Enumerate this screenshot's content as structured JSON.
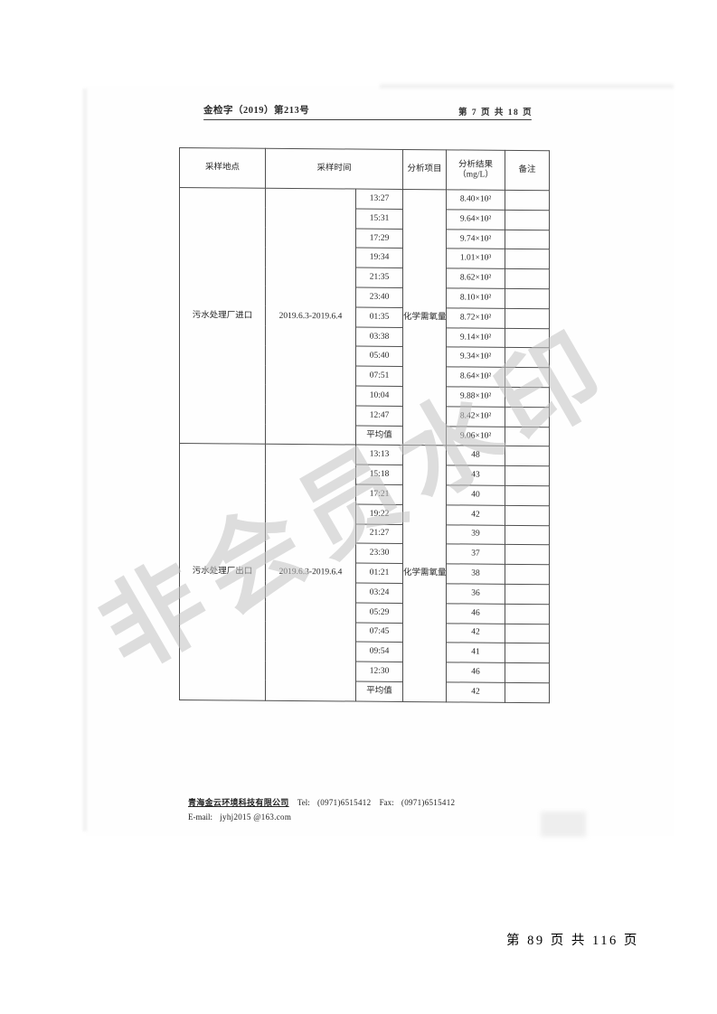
{
  "scan": {
    "doc_number": "金检字（2019）第213号",
    "page_label": "第 7 页 共 18 页",
    "watermark": "非会员水印",
    "table": {
      "headers": {
        "location": "采样地点",
        "time": "采样时间",
        "item": "分析项目",
        "result_line1": "分析结果",
        "result_line2": "（mg/L）",
        "remark": "备注"
      },
      "sections": [
        {
          "location": "污水处理厂进口",
          "date": "2019.6.3-2019.6.4",
          "item": "化学需氧量",
          "rows": [
            {
              "time": "13:27",
              "result": "8.40×10²",
              "remark": ""
            },
            {
              "time": "15:31",
              "result": "9.64×10²",
              "remark": ""
            },
            {
              "time": "17:29",
              "result": "9.74×10²",
              "remark": ""
            },
            {
              "time": "19:34",
              "result": "1.01×10³",
              "remark": ""
            },
            {
              "time": "21:35",
              "result": "8.62×10²",
              "remark": ""
            },
            {
              "time": "23:40",
              "result": "8.10×10²",
              "remark": ""
            },
            {
              "time": "01:35",
              "result": "8.72×10²",
              "remark": ""
            },
            {
              "time": "03:38",
              "result": "9.14×10²",
              "remark": ""
            },
            {
              "time": "05:40",
              "result": "9.34×10²",
              "remark": ""
            },
            {
              "time": "07:51",
              "result": "8.64×10²",
              "remark": ""
            },
            {
              "time": "10:04",
              "result": "9.88×10²",
              "remark": ""
            },
            {
              "time": "12:47",
              "result": "8.42×10²",
              "remark": ""
            },
            {
              "time": "平均值",
              "result": "9.06×10²",
              "remark": ""
            }
          ]
        },
        {
          "location": "污水处理厂出口",
          "date": "2019.6.3-2019.6.4",
          "item": "化学需氧量",
          "rows": [
            {
              "time": "13:13",
              "result": "48",
              "remark": ""
            },
            {
              "time": "15:18",
              "result": "43",
              "remark": ""
            },
            {
              "time": "17:21",
              "result": "40",
              "remark": ""
            },
            {
              "time": "19:22",
              "result": "42",
              "remark": ""
            },
            {
              "time": "21:27",
              "result": "39",
              "remark": ""
            },
            {
              "time": "23:30",
              "result": "37",
              "remark": ""
            },
            {
              "time": "01:21",
              "result": "38",
              "remark": ""
            },
            {
              "time": "03:24",
              "result": "36",
              "remark": ""
            },
            {
              "time": "05:29",
              "result": "46",
              "remark": ""
            },
            {
              "time": "07:45",
              "result": "42",
              "remark": ""
            },
            {
              "time": "09:54",
              "result": "41",
              "remark": ""
            },
            {
              "time": "12:30",
              "result": "46",
              "remark": ""
            },
            {
              "time": "平均值",
              "result": "42",
              "remark": ""
            }
          ]
        }
      ]
    },
    "footer": {
      "company": "青海金云环境科技有限公司",
      "tel_label": "Tel:",
      "tel": "(0971)6515412",
      "fax_label": "Fax:",
      "fax": "(0971)6515412",
      "email_label": "E-mail:",
      "email": "jyhj2015 @163.com"
    }
  },
  "viewer": {
    "page_indicator": "第 89 页 共 116 页"
  }
}
